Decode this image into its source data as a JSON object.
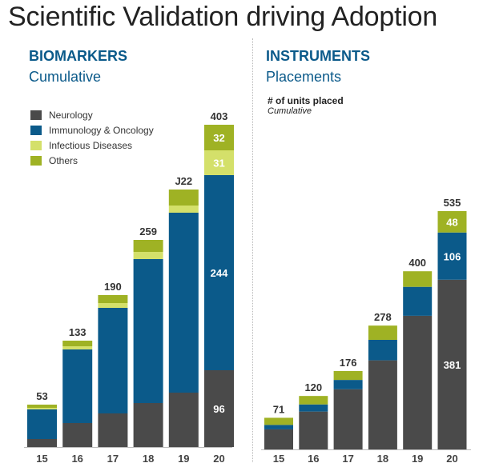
{
  "title": "Scientific Validation driving Adoption",
  "colors": {
    "neurology": "#4a4a4a",
    "immuno": "#0b5a8a",
    "infectious": "#d4e06a",
    "others": "#9fb224",
    "heading": "#0b5a8a"
  },
  "legend": [
    {
      "label": "Neurology",
      "color": "#4a4a4a"
    },
    {
      "label": "Immunology & Oncology",
      "color": "#0b5a8a"
    },
    {
      "label": "Infectious Diseases",
      "color": "#d4e06a"
    },
    {
      "label": "Others",
      "color": "#9fb224"
    }
  ],
  "biomarkers": {
    "heading": "BIOMARKERS",
    "subheading": "Cumulative"
  },
  "instruments": {
    "heading": "INSTRUMENTS",
    "subheading": "Placements",
    "note_title": "# of units placed",
    "note_sub": "Cumulative"
  },
  "chart_data": [
    {
      "type": "bar",
      "stacked": true,
      "title": "BIOMARKERS",
      "subtitle": "Cumulative",
      "categories": [
        "15",
        "16",
        "17",
        "18",
        "19",
        "20"
      ],
      "totals": [
        "53",
        "133",
        "190",
        "259",
        "J22",
        "403"
      ],
      "series": [
        {
          "name": "Neurology",
          "color": "#4a4a4a",
          "values": [
            10,
            30,
            42,
            55,
            68,
            96
          ],
          "labels": [
            "",
            "",
            "",
            "",
            "",
            "96"
          ]
        },
        {
          "name": "Immunology & Oncology",
          "color": "#0b5a8a",
          "values": [
            37,
            92,
            132,
            180,
            225,
            244
          ],
          "labels": [
            "",
            "",
            "",
            "",
            "",
            "244"
          ]
        },
        {
          "name": "Infectious Diseases",
          "color": "#d4e06a",
          "values": [
            2,
            4,
            6,
            9,
            9,
            31
          ],
          "labels": [
            "",
            "",
            "",
            "",
            "",
            "31"
          ]
        },
        {
          "name": "Others",
          "color": "#9fb224",
          "values": [
            4,
            7,
            10,
            15,
            20,
            32
          ],
          "labels": [
            "",
            "",
            "",
            "",
            "",
            "32"
          ]
        }
      ],
      "ylim": [
        0,
        420
      ],
      "grid": false,
      "legend_position": "top-left"
    },
    {
      "type": "bar",
      "stacked": true,
      "title": "INSTRUMENTS",
      "subtitle": "Placements",
      "categories": [
        "15",
        "16",
        "17",
        "18",
        "19",
        "20"
      ],
      "totals": [
        "71",
        "120",
        "176",
        "278",
        "400",
        "535"
      ],
      "series": [
        {
          "name": "Neurology",
          "color": "#4a4a4a",
          "values": [
            45,
            85,
            135,
            200,
            300,
            381
          ],
          "labels": [
            "",
            "",
            "",
            "",
            "",
            "381"
          ]
        },
        {
          "name": "Immunology & Oncology",
          "color": "#0b5a8a",
          "values": [
            10,
            16,
            21,
            46,
            65,
            106
          ],
          "labels": [
            "",
            "",
            "",
            "",
            "",
            "106"
          ]
        },
        {
          "name": "Others",
          "color": "#9fb224",
          "values": [
            16,
            19,
            20,
            32,
            35,
            48
          ],
          "labels": [
            "",
            "",
            "",
            "",
            "",
            "48"
          ]
        }
      ],
      "ylim": [
        0,
        560
      ],
      "grid": false,
      "legend_position": "none"
    }
  ]
}
